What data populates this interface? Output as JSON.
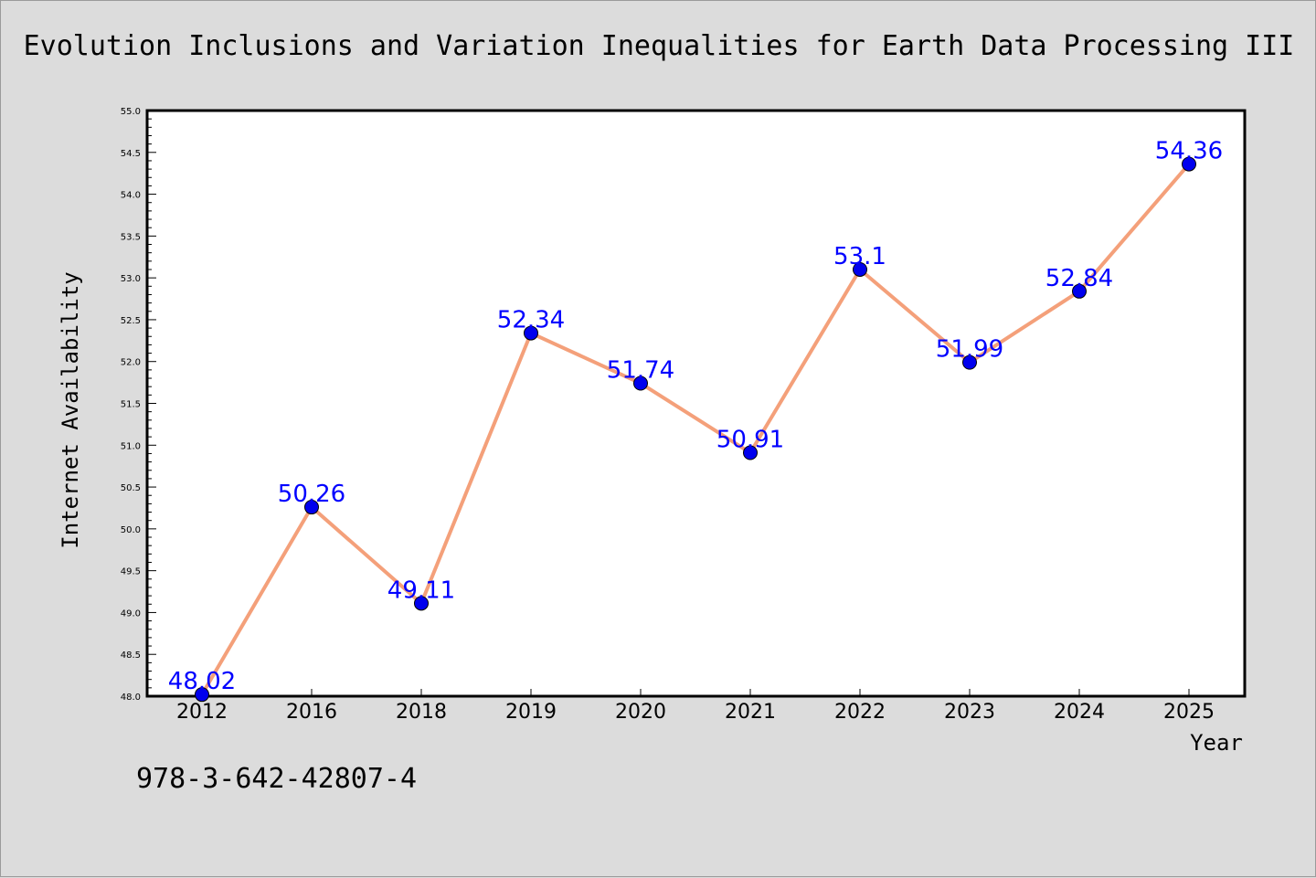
{
  "chart_data": {
    "type": "line",
    "title": "Evolution Inclusions and Variation Inequalities for Earth Data Processing III",
    "xlabel": "Year",
    "ylabel": "Internet Availability",
    "categories": [
      "2012",
      "2016",
      "2018",
      "2019",
      "2020",
      "2021",
      "2022",
      "2023",
      "2024",
      "2025"
    ],
    "series": [
      {
        "values": [
          48.02,
          50.26,
          49.11,
          52.34,
          51.74,
          50.91,
          53.1,
          51.99,
          52.84,
          54.36
        ],
        "labels": [
          "48.02",
          "50.26",
          "49.11",
          "52.34",
          "51.74",
          "50.91",
          "53.1",
          "51.99",
          "52.84",
          "54.36"
        ],
        "line_color": "#f4a07a",
        "marker_color": "#0000ee",
        "label_color": "#0000ff"
      }
    ],
    "ylim": [
      48.0,
      55.0
    ],
    "yticks": [
      "48.0",
      "48.5",
      "49.0",
      "49.5",
      "50.0",
      "50.5",
      "51.0",
      "51.5",
      "52.0",
      "52.5",
      "53.0",
      "53.5",
      "54.0",
      "54.5",
      "55.0"
    ],
    "grid": false,
    "legend": "none"
  },
  "footer_code": "978-3-642-42807-4"
}
